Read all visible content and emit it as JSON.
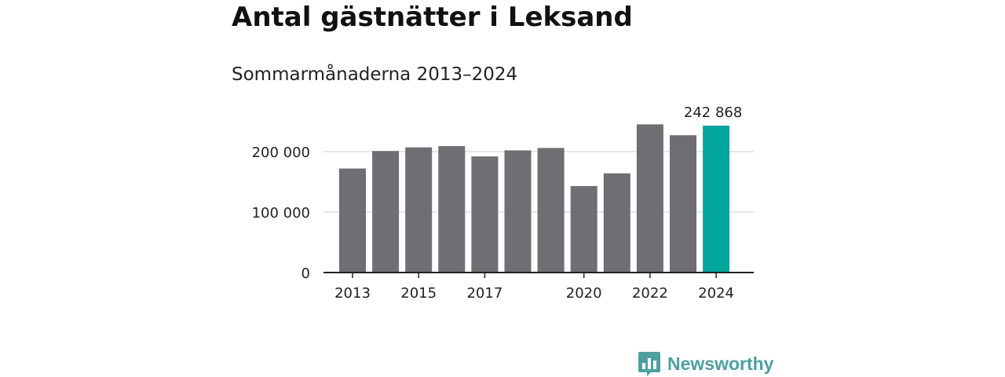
{
  "title": "Antal gästnätter i Leksand",
  "subtitle": "Sommarmånaderna 2013–2024",
  "brand": {
    "name": "Newsworthy",
    "logo_icon": "newsworthy-bar-chart-bubble-icon",
    "color": "#4e9fa0"
  },
  "colors": {
    "bar": "#6e6e73",
    "highlight": "#00a59b",
    "grid": "#dddddd",
    "axis": "#222222",
    "text": "#222222"
  },
  "chart_data": {
    "type": "bar",
    "title": "Antal gästnätter i Leksand",
    "subtitle": "Sommarmånaderna 2013–2024",
    "categories": [
      "2013",
      "2014",
      "2015",
      "2016",
      "2017",
      "2018",
      "2019",
      "2020",
      "2021",
      "2022",
      "2023",
      "2024"
    ],
    "values": [
      172000,
      201000,
      207000,
      209000,
      192000,
      202000,
      206000,
      143000,
      164000,
      245000,
      227000,
      242868
    ],
    "highlight_index": 11,
    "highlight_label": "242 868",
    "ylim": [
      0,
      250000
    ],
    "yticks": [
      0,
      100000,
      200000
    ],
    "ytick_labels": [
      "0",
      "100 000",
      "200 000"
    ],
    "xtick_labels": [
      "2013",
      "2015",
      "2017",
      "2020",
      "2022",
      "2024"
    ],
    "xlabel": "",
    "ylabel": "",
    "grid": true,
    "legend": "none"
  }
}
